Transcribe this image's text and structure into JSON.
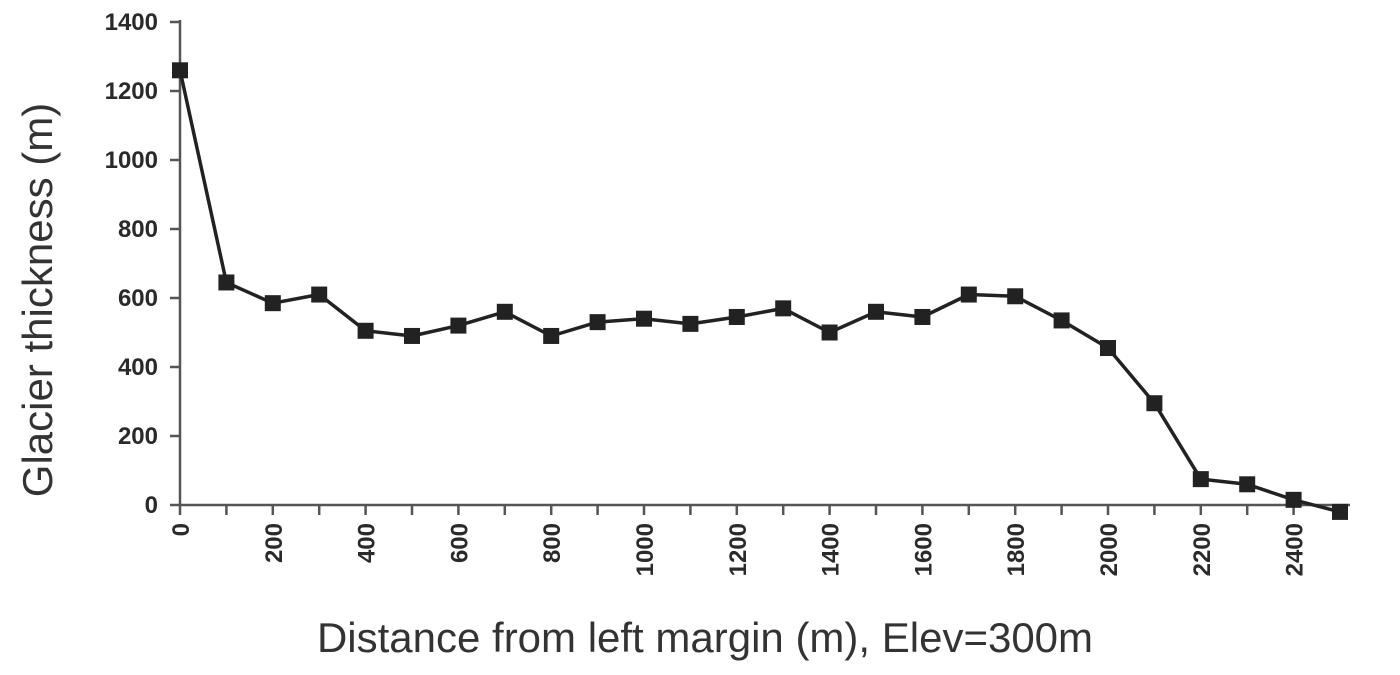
{
  "chart_data": {
    "type": "line",
    "xlabel": "Distance from left margin (m), Elev=300m",
    "ylabel": "Glacier thickness (m)",
    "xlim": [
      0,
      2500
    ],
    "ylim": [
      0,
      1400
    ],
    "x_ticks": [
      0,
      200,
      400,
      600,
      800,
      1000,
      1200,
      1400,
      1600,
      1800,
      2000,
      2200,
      2400
    ],
    "y_ticks": [
      0,
      200,
      400,
      600,
      800,
      1000,
      1200,
      1400
    ],
    "x_minor_ticks": [
      100,
      300,
      500,
      700,
      900,
      1100,
      1300,
      1500,
      1700,
      1900,
      2100,
      2300
    ],
    "grid": false,
    "series": [
      {
        "x": [
          0,
          100,
          200,
          300,
          400,
          500,
          600,
          700,
          800,
          900,
          1000,
          1100,
          1200,
          1300,
          1400,
          1500,
          1600,
          1700,
          1800,
          1900,
          2000,
          2100,
          2200,
          2300,
          2400,
          2500
        ],
        "values": [
          1260,
          645,
          585,
          610,
          505,
          490,
          520,
          560,
          490,
          530,
          540,
          525,
          545,
          570,
          500,
          560,
          545,
          610,
          605,
          535,
          455,
          295,
          75,
          60,
          15,
          -20
        ],
        "marker": "square",
        "color": "#222222"
      }
    ]
  }
}
